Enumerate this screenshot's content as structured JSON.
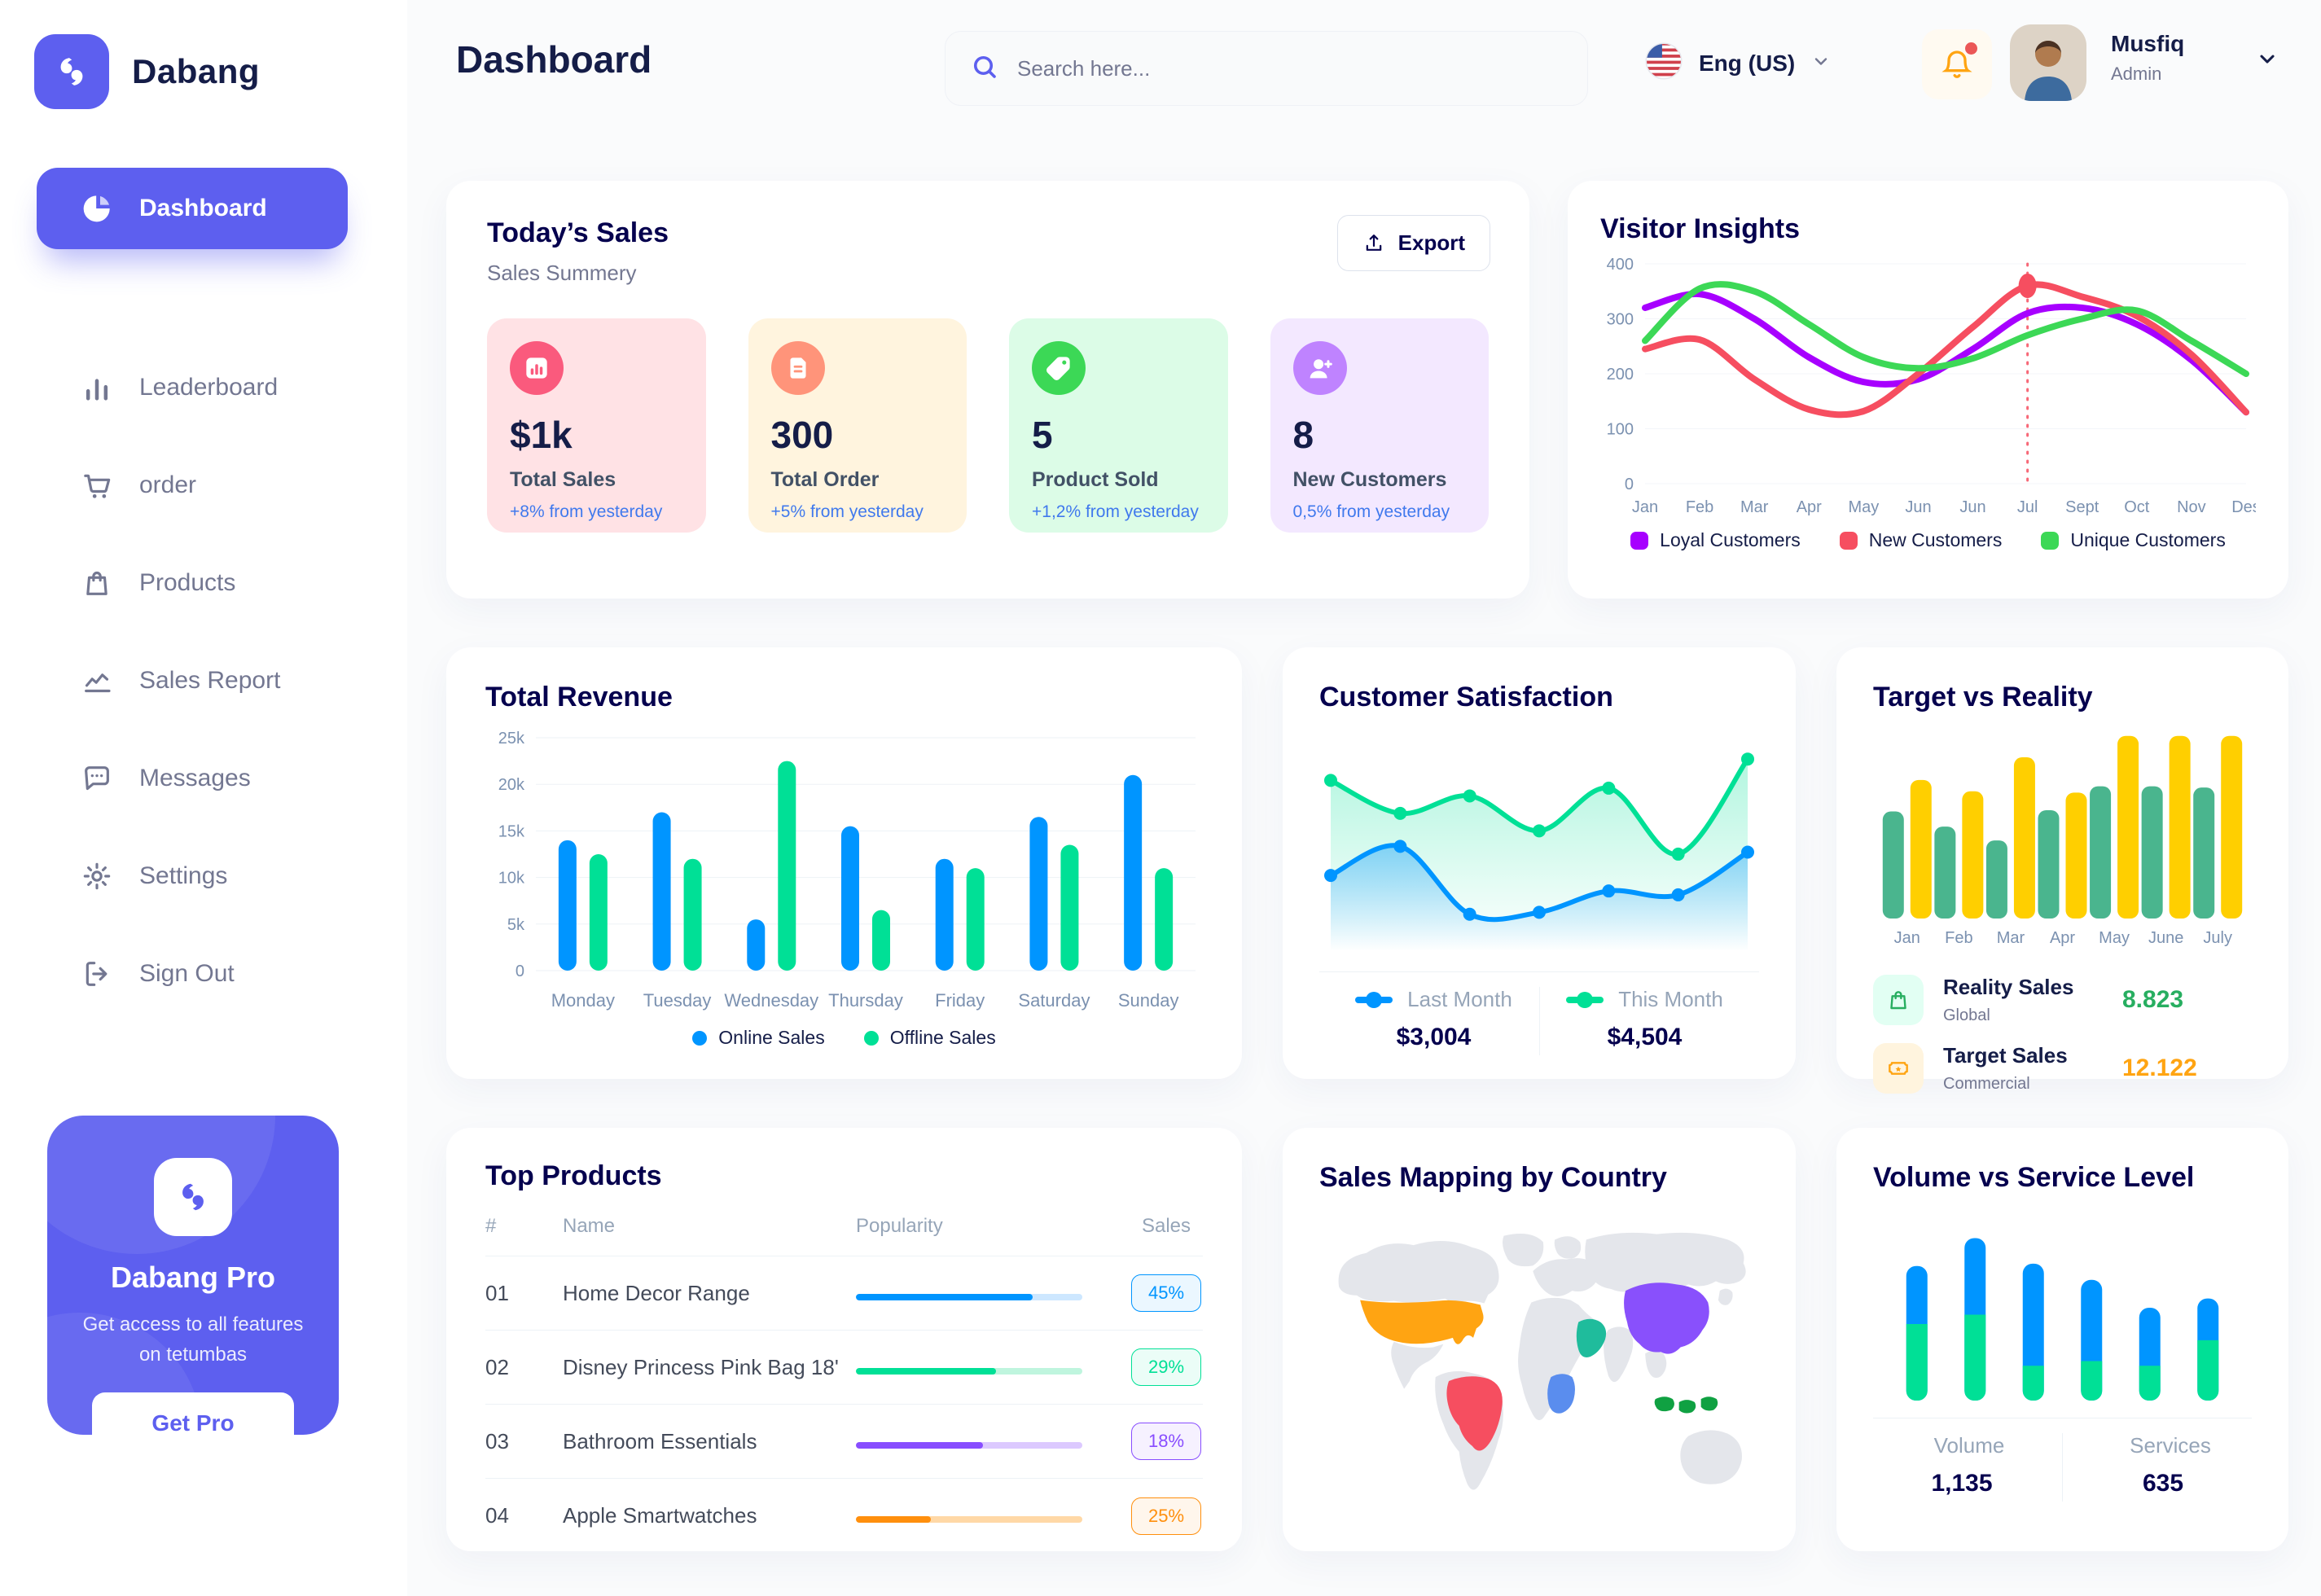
{
  "sidebar": {
    "brand": "Dabang",
    "items": [
      {
        "label": "Dashboard",
        "icon": "dashboard",
        "active": true
      },
      {
        "label": "Leaderboard",
        "icon": "leaderboard",
        "active": false
      },
      {
        "label": "order",
        "icon": "order",
        "active": false
      },
      {
        "label": "Products",
        "icon": "products",
        "active": false
      },
      {
        "label": "Sales Report",
        "icon": "sales-report",
        "active": false
      },
      {
        "label": "Messages",
        "icon": "messages",
        "active": false
      },
      {
        "label": "Settings",
        "icon": "settings",
        "active": false
      },
      {
        "label": "Sign Out",
        "icon": "sign-out",
        "active": false
      }
    ],
    "pro_card": {
      "title": "Dabang Pro",
      "subtitle": "Get access to all features on tetumbas",
      "button": "Get Pro"
    }
  },
  "header": {
    "title": "Dashboard",
    "search_placeholder": "Search here...",
    "language": "Eng (US)",
    "user_name": "Musfiq",
    "user_role": "Admin"
  },
  "today_sales": {
    "title": "Today’s Sales",
    "subtitle": "Sales Summery",
    "export_label": "Export",
    "stats": [
      {
        "value": "$1k",
        "label": "Total Sales",
        "delta": "+8% from yesterday",
        "bg": "#FFE2E5",
        "accent": "#FA5A7D",
        "icon": "sales"
      },
      {
        "value": "300",
        "label": "Total Order",
        "delta": "+5% from yesterday",
        "bg": "#FFF4DE",
        "accent": "#FF947A",
        "icon": "order"
      },
      {
        "value": "5",
        "label": "Product Sold",
        "delta": "+1,2% from yesterday",
        "bg": "#DCFCE7",
        "accent": "#3CD856",
        "icon": "sold"
      },
      {
        "value": "8",
        "label": "New Customers",
        "delta": "0,5% from yesterday",
        "bg": "#F3E8FF",
        "accent": "#BF83FF",
        "icon": "customers"
      }
    ]
  },
  "top_products": {
    "title": "Top Products",
    "columns": {
      "num": "#",
      "name": "Name",
      "popularity": "Popularity",
      "sales": "Sales"
    },
    "rows": [
      {
        "num": "01",
        "name": "Home Decor Range",
        "popularity": 78,
        "sales": "45%",
        "color": "#0095FF",
        "track": "#CDE7FF"
      },
      {
        "num": "02",
        "name": "Disney Princess Pink Bag 18'",
        "popularity": 62,
        "sales": "29%",
        "color": "#00E096",
        "track": "#BFF5DE"
      },
      {
        "num": "03",
        "name": "Bathroom Essentials",
        "popularity": 56,
        "sales": "18%",
        "color": "#884DFF",
        "track": "#DCC9FF"
      },
      {
        "num": "04",
        "name": "Apple Smartwatches",
        "popularity": 33,
        "sales": "25%",
        "color": "#FF8F0D",
        "track": "#FFD8A6"
      }
    ]
  },
  "sales_map": {
    "title": "Sales Mapping by Country",
    "countries": [
      {
        "name": "United States",
        "color": "#FFA412"
      },
      {
        "name": "Brazil",
        "color": "#F64E60"
      },
      {
        "name": "Saudi Arabia",
        "color": "#1FBC9C"
      },
      {
        "name": "DR Congo",
        "color": "#5A8DEE"
      },
      {
        "name": "China",
        "color": "#8950FC"
      },
      {
        "name": "Indonesia",
        "color": "#10A142"
      }
    ]
  },
  "chart_data": [
    {
      "id": "visitor_insights",
      "type": "line",
      "title": "Visitor Insights",
      "x": [
        "Jan",
        "Feb",
        "Mar",
        "Apr",
        "May",
        "Jun",
        "Jun",
        "Jul",
        "Sept",
        "Oct",
        "Nov",
        "Des"
      ],
      "ylim": [
        0,
        400
      ],
      "yticks": [
        0,
        100,
        200,
        300,
        400
      ],
      "grid": true,
      "legend_position": "bottom",
      "series": [
        {
          "name": "Loyal Customers",
          "color": "#A700FF",
          "values": [
            320,
            345,
            300,
            230,
            185,
            190,
            245,
            310,
            320,
            290,
            225,
            130
          ]
        },
        {
          "name": "New Customers",
          "color": "#F64E60",
          "values": [
            245,
            262,
            190,
            135,
            132,
            200,
            285,
            360,
            340,
            305,
            235,
            130
          ]
        },
        {
          "name": "Unique Customers",
          "color": "#3CD856",
          "values": [
            260,
            355,
            350,
            290,
            230,
            210,
            228,
            270,
            300,
            315,
            260,
            200
          ]
        }
      ],
      "marker": {
        "series": 1,
        "index": 7,
        "color": "#F64E60",
        "note": "dashed vertical highlight at Jul"
      }
    },
    {
      "id": "total_revenue",
      "type": "bar",
      "title": "Total Revenue",
      "categories": [
        "Monday",
        "Tuesday",
        "Wednesday",
        "Thursday",
        "Friday",
        "Saturday",
        "Sunday"
      ],
      "ylim": [
        0,
        25000
      ],
      "yticks_labels": [
        "0",
        "5k",
        "10k",
        "15k",
        "20k",
        "25k"
      ],
      "grid": true,
      "legend_position": "bottom",
      "series": [
        {
          "name": "Online Sales",
          "color": "#0095FF",
          "values": [
            14000,
            17000,
            5500,
            15500,
            12000,
            16500,
            21000
          ]
        },
        {
          "name": "Offline Sales",
          "color": "#00E096",
          "values": [
            12500,
            12000,
            22500,
            6500,
            11000,
            13500,
            11000
          ]
        }
      ]
    },
    {
      "id": "customer_satisfaction",
      "type": "area",
      "title": "Customer Satisfaction",
      "ylim": [
        0,
        110
      ],
      "legend_position": "bottom",
      "series": [
        {
          "name": "Last Month",
          "color": "#0095FF",
          "total": "$3,004",
          "values": [
            39,
            54,
            19,
            20,
            31,
            29,
            51
          ]
        },
        {
          "name": "This Month",
          "color": "#00E096",
          "total": "$4,504",
          "values": [
            88,
            71,
            80,
            62,
            84,
            50,
            99
          ]
        }
      ]
    },
    {
      "id": "target_vs_reality",
      "type": "bar",
      "title": "Target vs Reality",
      "categories": [
        "Jan",
        "Feb",
        "Mar",
        "Apr",
        "May",
        "June",
        "July"
      ],
      "ylim": [
        0,
        15
      ],
      "legend_position": "bottom",
      "series": [
        {
          "name": "Reality Sales",
          "subtitle": "Global",
          "color": "#4AB58E",
          "value_label": "8.823",
          "value_color": "#27AE60",
          "values": [
            8.5,
            7.3,
            6.2,
            8.6,
            10.5,
            10.5,
            10.4
          ]
        },
        {
          "name": "Target Sales",
          "subtitle": "Commercial",
          "color": "#FFCF00",
          "value_label": "12.122",
          "value_color": "#FFA412",
          "values": [
            11,
            10.1,
            12.8,
            10,
            14.5,
            14.5,
            14.5
          ]
        }
      ]
    },
    {
      "id": "volume_service",
      "type": "stacked-bar",
      "title": "Volume vs Service Level",
      "ylim": [
        0,
        80
      ],
      "legend_position": "bottom",
      "series": [
        {
          "name": "Volume",
          "color": "#0095FF",
          "total": "1,135",
          "values": [
            25,
            33,
            44,
            35,
            25,
            18
          ]
        },
        {
          "name": "Services",
          "color": "#00E096",
          "total": "635",
          "values": [
            33,
            37,
            15,
            17,
            15,
            26
          ]
        }
      ]
    }
  ]
}
